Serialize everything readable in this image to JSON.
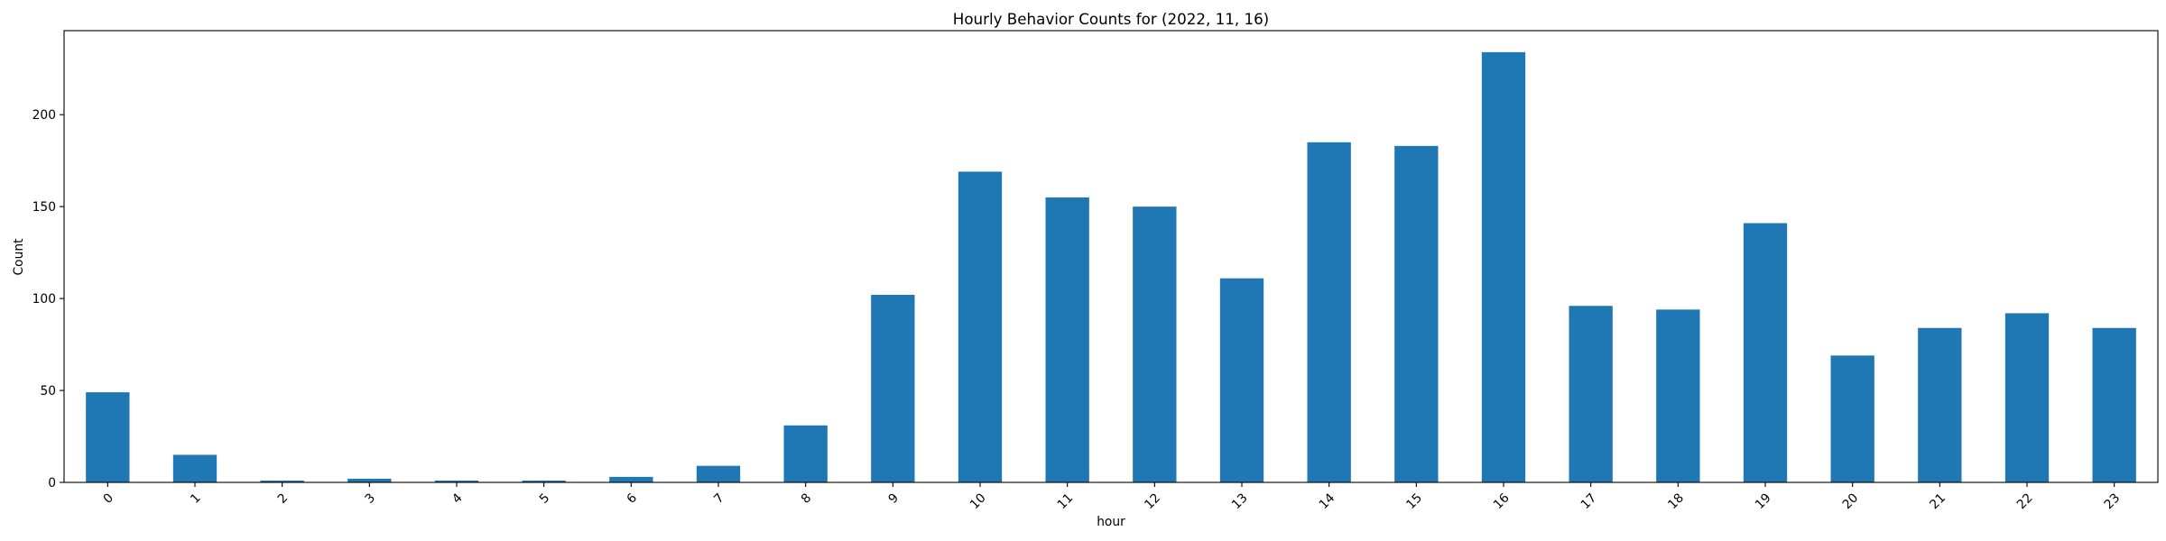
{
  "chart_data": {
    "type": "bar",
    "title": "Hourly Behavior Counts for (2022, 11, 16)",
    "xlabel": "hour",
    "ylabel": "Count",
    "categories": [
      "0",
      "1",
      "2",
      "3",
      "4",
      "5",
      "6",
      "7",
      "8",
      "9",
      "10",
      "11",
      "12",
      "13",
      "14",
      "15",
      "16",
      "17",
      "18",
      "19",
      "20",
      "21",
      "22",
      "23"
    ],
    "values": [
      49,
      15,
      1,
      2,
      1,
      1,
      3,
      9,
      31,
      102,
      169,
      155,
      150,
      111,
      185,
      183,
      234,
      96,
      94,
      141,
      69,
      84,
      92,
      84
    ],
    "ylim": [
      0,
      245.7
    ],
    "yticks": [
      0,
      50,
      100,
      150,
      200
    ],
    "grid": false,
    "bar_color": "#1f77b4",
    "x_tick_rotation_deg": 45
  }
}
